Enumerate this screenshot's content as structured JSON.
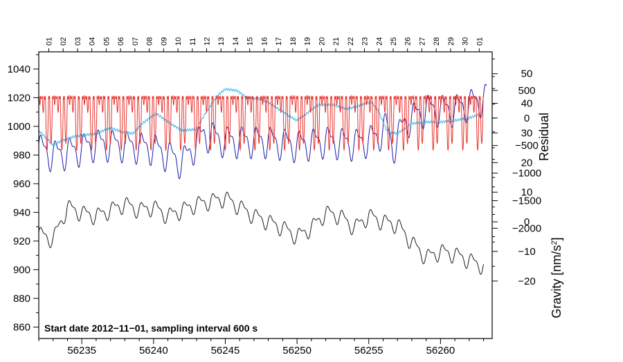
{
  "chart_data": {
    "type": "line",
    "annotation": "Start date 2012−11−01, sampling interval 600 s",
    "x_range": [
      56232.0,
      56263.6
    ],
    "x_ticks": [
      56235,
      56240,
      56245,
      56250,
      56255,
      56260
    ],
    "x_tick_labels": [
      "56235",
      "56240",
      "56245",
      "56250",
      "56255",
      "56260"
    ],
    "top_tick_labels": [
      "01",
      "02",
      "03",
      "04",
      "05",
      "06",
      "07",
      "08",
      "09",
      "10",
      "11",
      "12",
      "13",
      "14",
      "15",
      "16",
      "17",
      "18",
      "19",
      "20",
      "21",
      "22",
      "23",
      "24",
      "25",
      "26",
      "27",
      "28",
      "29",
      "30",
      "01"
    ],
    "left_axis": {
      "range": [
        852,
        1052
      ],
      "ticks": [
        860,
        880,
        900,
        920,
        940,
        960,
        980,
        1000,
        1020,
        1040
      ],
      "tick_labels": [
        "860",
        "880",
        "900",
        "920",
        "940",
        "960",
        "980",
        "1000",
        "1020",
        "1040"
      ],
      "label": ""
    },
    "residual_axis": {
      "label": "Residual",
      "range": [
        -39.4,
        57.4
      ],
      "ticks": [
        -20,
        -10,
        0,
        10,
        20,
        30,
        40,
        50
      ],
      "tick_labels": [
        "−20",
        "−10",
        "0",
        "10",
        "20",
        "30",
        "40",
        "50"
      ]
    },
    "gravity_axis": {
      "label": "Gravity [nm/s²]",
      "label_main": "Gravity [nm/s",
      "label_sup": "2",
      "label_end": "]",
      "range": [
        -4000,
        1200
      ],
      "ticks": [
        -2000,
        -1500,
        -1000,
        -500,
        0,
        500
      ],
      "tick_labels": [
        "−2000",
        "−1500",
        "−1000",
        "−500",
        "0",
        "500"
      ]
    },
    "series": [
      {
        "name": "blue",
        "color": "#1a1aa8",
        "axis": "left",
        "form": "diurnal",
        "amplitude": 12,
        "period_days": 1.0,
        "baseline_x": [
          56232.0,
          56233.0,
          56234.5,
          56236.0,
          56238.0,
          56240.0,
          56242.0,
          56243.5,
          56245.0,
          56248.0,
          56250.0,
          56252.0,
          56254.0,
          56255.5,
          56256.2,
          56256.7,
          56257.5,
          56259.0,
          56261.0,
          56263.2
        ],
        "baseline_y": [
          985,
          980,
          983,
          988,
          987,
          985,
          975,
          995,
          990,
          990,
          987,
          990,
          988,
          992,
          1000,
          985,
          1003,
          1012,
          1012,
          1020
        ]
      },
      {
        "name": "cyan",
        "color": "#33b8ee",
        "axis": "left",
        "x": [
          56232.0,
          56233.0,
          56233.6,
          56234.5,
          56236.0,
          56237.0,
          56237.8,
          56238.6,
          56239.2,
          56240.2,
          56241.0,
          56242.0,
          56243.0,
          56243.6,
          56244.5,
          56245.0,
          56245.8,
          56246.5,
          56247.5,
          56248.3,
          56249.0,
          56250.0,
          56251.5,
          56252.5,
          56253.5,
          56254.5,
          56255.2,
          56255.7,
          56256.3,
          56257.0,
          56258.0,
          56259.0,
          56260.0,
          56261.0,
          56262.0,
          56263.0
        ],
        "y": [
          997,
          987,
          990,
          993,
          995,
          999,
          996,
          995,
          1002,
          1009,
          1003,
          997,
          998,
          1009,
          1022,
          1026,
          1025,
          1020,
          1019,
          1015,
          1010,
          1004,
          1015,
          1015,
          1012,
          1015,
          1017,
          1010,
          996,
          995,
          1002,
          1003,
          1003,
          1004,
          1006,
          1009
        ]
      },
      {
        "name": "black",
        "color": "#1a1a1a",
        "axis": "residual",
        "form": "diurnal",
        "amplitude": 3,
        "period_days": 1.0,
        "baseline_x": [
          56232.0,
          56233.0,
          56234.0,
          56235.0,
          56236.0,
          56237.0,
          56238.0,
          56239.0,
          56240.0,
          56241.0,
          56242.0,
          56243.0,
          56244.0,
          56245.0,
          56246.0,
          56247.0,
          56248.0,
          56249.0,
          56250.0,
          56251.0,
          56252.0,
          56253.0,
          56254.0,
          56255.0,
          56256.0,
          56257.0,
          56258.0,
          56259.0,
          56260.0,
          56261.0,
          56262.0,
          56263.0
        ],
        "baseline_y": [
          -4,
          -6,
          5,
          3,
          2,
          4,
          6,
          4,
          5,
          2,
          4,
          6,
          7,
          8,
          5,
          2,
          0,
          -2,
          -5,
          -2,
          3,
          2,
          -2,
          2,
          0,
          -1,
          -7,
          -12,
          -10,
          -11,
          -13,
          -15
        ]
      },
      {
        "name": "red",
        "color": "#e8302a",
        "axis": "gravity",
        "form": "tide",
        "amplitude_nm_s2": 1250,
        "period_days": 0.5175,
        "semidiurnal_weight": 1.0,
        "diurnal_weight": 0.4,
        "x_range": [
          56232.0,
          56263.0
        ]
      }
    ]
  }
}
